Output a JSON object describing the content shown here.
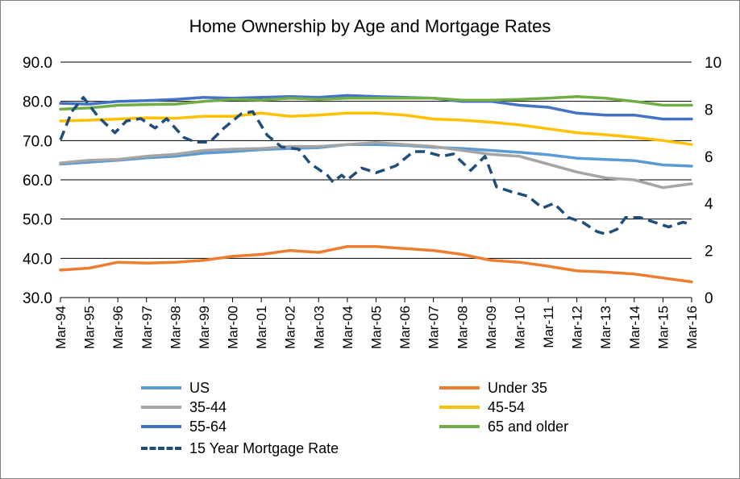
{
  "chart_data": {
    "type": "line",
    "title": "Home Ownership by Age and Mortgage Rates",
    "x_tick_labels": [
      "Mar-94",
      "Mar-95",
      "Mar-96",
      "Mar-97",
      "Mar-98",
      "Mar-99",
      "Mar-00",
      "Mar-01",
      "Mar-02",
      "Mar-03",
      "Mar-04",
      "Mar-05",
      "Mar-06",
      "Mar-07",
      "Mar-08",
      "Mar-09",
      "Mar-10",
      "Mar-11",
      "Mar-12",
      "Mar-13",
      "Mar-14",
      "Mar-15",
      "Mar-16"
    ],
    "y_left": {
      "min": 30,
      "max": 90,
      "ticks": [
        "30.0",
        "40.0",
        "50.0",
        "60.0",
        "70.0",
        "80.0",
        "90.0"
      ]
    },
    "y_right": {
      "min": 0,
      "max": 10,
      "ticks": [
        "0",
        "2",
        "4",
        "6",
        "8",
        "10"
      ]
    },
    "grid": "horizontal",
    "legend_position": "bottom",
    "series": [
      {
        "name": "US",
        "axis": "left",
        "color": "#5b9bd5",
        "dash": false,
        "points": [
          [
            1994,
            64
          ],
          [
            1995,
            64.5
          ],
          [
            1996,
            65
          ],
          [
            1997,
            65.6
          ],
          [
            1998,
            66
          ],
          [
            1999,
            66.8
          ],
          [
            2000,
            67.2
          ],
          [
            2001,
            67.7
          ],
          [
            2002,
            68
          ],
          [
            2003,
            68.2
          ],
          [
            2004,
            69
          ],
          [
            2005,
            69
          ],
          [
            2006,
            68.8
          ],
          [
            2007,
            68.3
          ],
          [
            2008,
            68
          ],
          [
            2009,
            67.5
          ],
          [
            2010,
            67
          ],
          [
            2011,
            66.4
          ],
          [
            2012,
            65.5
          ],
          [
            2013,
            65.2
          ],
          [
            2014,
            64.9
          ],
          [
            2015,
            63.8
          ],
          [
            2016,
            63.5
          ]
        ]
      },
      {
        "name": "Under 35",
        "axis": "left",
        "color": "#ed7d31",
        "dash": false,
        "points": [
          [
            1994,
            37
          ],
          [
            1995,
            37.5
          ],
          [
            1996,
            39
          ],
          [
            1997,
            38.8
          ],
          [
            1998,
            39
          ],
          [
            1999,
            39.5
          ],
          [
            2000,
            40.5
          ],
          [
            2001,
            41
          ],
          [
            2002,
            42
          ],
          [
            2003,
            41.5
          ],
          [
            2004,
            43
          ],
          [
            2005,
            43
          ],
          [
            2006,
            42.5
          ],
          [
            2007,
            42
          ],
          [
            2008,
            41
          ],
          [
            2009,
            39.5
          ],
          [
            2010,
            39
          ],
          [
            2011,
            38
          ],
          [
            2012,
            36.8
          ],
          [
            2013,
            36.5
          ],
          [
            2014,
            36
          ],
          [
            2015,
            35
          ],
          [
            2016,
            34
          ]
        ]
      },
      {
        "name": "35-44",
        "axis": "left",
        "color": "#a5a5a5",
        "dash": false,
        "points": [
          [
            1994,
            64.3
          ],
          [
            1995,
            65
          ],
          [
            1996,
            65.2
          ],
          [
            1997,
            66
          ],
          [
            1998,
            66.5
          ],
          [
            1999,
            67.5
          ],
          [
            2000,
            67.8
          ],
          [
            2001,
            68
          ],
          [
            2002,
            68.5
          ],
          [
            2003,
            68.5
          ],
          [
            2004,
            69
          ],
          [
            2005,
            69.5
          ],
          [
            2006,
            69
          ],
          [
            2007,
            68.5
          ],
          [
            2008,
            67.5
          ],
          [
            2009,
            66.5
          ],
          [
            2010,
            66
          ],
          [
            2011,
            64
          ],
          [
            2012,
            62
          ],
          [
            2013,
            60.5
          ],
          [
            2014,
            60
          ],
          [
            2015,
            58
          ],
          [
            2016,
            59
          ]
        ]
      },
      {
        "name": "45-54",
        "axis": "left",
        "color": "#ffc000",
        "dash": false,
        "points": [
          [
            1994,
            75
          ],
          [
            1995,
            75.2
          ],
          [
            1996,
            75.5
          ],
          [
            1997,
            75.8
          ],
          [
            1998,
            75.7
          ],
          [
            1999,
            76.2
          ],
          [
            2000,
            76.2
          ],
          [
            2001,
            77
          ],
          [
            2002,
            76.2
          ],
          [
            2003,
            76.5
          ],
          [
            2004,
            77
          ],
          [
            2005,
            77
          ],
          [
            2006,
            76.5
          ],
          [
            2007,
            75.5
          ],
          [
            2008,
            75.2
          ],
          [
            2009,
            74.7
          ],
          [
            2010,
            74
          ],
          [
            2011,
            73
          ],
          [
            2012,
            72
          ],
          [
            2013,
            71.5
          ],
          [
            2014,
            70.8
          ],
          [
            2015,
            70
          ],
          [
            2016,
            69
          ]
        ]
      },
      {
        "name": "55-64",
        "axis": "left",
        "color": "#4472c4",
        "dash": false,
        "points": [
          [
            1994,
            79.5
          ],
          [
            1995,
            79.3
          ],
          [
            1996,
            80
          ],
          [
            1997,
            80.2
          ],
          [
            1998,
            80.5
          ],
          [
            1999,
            81
          ],
          [
            2000,
            80.8
          ],
          [
            2001,
            81
          ],
          [
            2002,
            81.2
          ],
          [
            2003,
            81
          ],
          [
            2004,
            81.5
          ],
          [
            2005,
            81.2
          ],
          [
            2006,
            81
          ],
          [
            2007,
            80.8
          ],
          [
            2008,
            80
          ],
          [
            2009,
            80
          ],
          [
            2010,
            79
          ],
          [
            2011,
            78.5
          ],
          [
            2012,
            77
          ],
          [
            2013,
            76.5
          ],
          [
            2014,
            76.5
          ],
          [
            2015,
            75.5
          ],
          [
            2016,
            75.5
          ]
        ]
      },
      {
        "name": "65 and older",
        "axis": "left",
        "color": "#70ad47",
        "dash": false,
        "points": [
          [
            1994,
            78
          ],
          [
            1995,
            78.3
          ],
          [
            1996,
            79
          ],
          [
            1997,
            79.2
          ],
          [
            1998,
            79.3
          ],
          [
            1999,
            80
          ],
          [
            2000,
            80.5
          ],
          [
            2001,
            80.3
          ],
          [
            2002,
            80.8
          ],
          [
            2003,
            80.5
          ],
          [
            2004,
            80.8
          ],
          [
            2005,
            80.8
          ],
          [
            2006,
            80.8
          ],
          [
            2007,
            80.8
          ],
          [
            2008,
            80.3
          ],
          [
            2009,
            80.3
          ],
          [
            2010,
            80.5
          ],
          [
            2011,
            80.8
          ],
          [
            2012,
            81.2
          ],
          [
            2013,
            80.8
          ],
          [
            2014,
            80
          ],
          [
            2015,
            79
          ],
          [
            2016,
            79
          ]
        ]
      },
      {
        "name": "15 Year Mortgage Rate",
        "axis": "right",
        "color": "#1f4e79",
        "dash": true,
        "points": [
          [
            1994,
            6.7
          ],
          [
            1994.4,
            7.9
          ],
          [
            1994.8,
            8.5
          ],
          [
            1995.3,
            7.7
          ],
          [
            1995.9,
            7
          ],
          [
            1996.3,
            7.5
          ],
          [
            1996.8,
            7.6
          ],
          [
            1997.3,
            7.2
          ],
          [
            1997.7,
            7.6
          ],
          [
            1998.3,
            6.8
          ],
          [
            1998.7,
            6.6
          ],
          [
            1999.2,
            6.6
          ],
          [
            1999.7,
            7.2
          ],
          [
            2000.3,
            7.8
          ],
          [
            2000.7,
            7.9
          ],
          [
            2001.2,
            6.9
          ],
          [
            2001.7,
            6.4
          ],
          [
            2002.3,
            6.3
          ],
          [
            2002.7,
            5.7
          ],
          [
            2003.3,
            5.2
          ],
          [
            2003.5,
            4.9
          ],
          [
            2003.8,
            5.2
          ],
          [
            2004,
            5
          ],
          [
            2004.5,
            5.5
          ],
          [
            2005,
            5.3
          ],
          [
            2005.7,
            5.6
          ],
          [
            2006.3,
            6.2
          ],
          [
            2006.7,
            6.2
          ],
          [
            2007.3,
            6
          ],
          [
            2007.7,
            6.1
          ],
          [
            2008.3,
            5.4
          ],
          [
            2008.8,
            6
          ],
          [
            2009.2,
            4.7
          ],
          [
            2009.7,
            4.5
          ],
          [
            2010.3,
            4.3
          ],
          [
            2010.8,
            3.8
          ],
          [
            2011.2,
            4
          ],
          [
            2011.7,
            3.4
          ],
          [
            2012.2,
            3.2
          ],
          [
            2012.7,
            2.8
          ],
          [
            2013,
            2.7
          ],
          [
            2013.4,
            2.9
          ],
          [
            2013.7,
            3.4
          ],
          [
            2014.2,
            3.4
          ],
          [
            2014.7,
            3.2
          ],
          [
            2015.2,
            3
          ],
          [
            2015.7,
            3.2
          ],
          [
            2016,
            3.1
          ]
        ]
      }
    ]
  }
}
